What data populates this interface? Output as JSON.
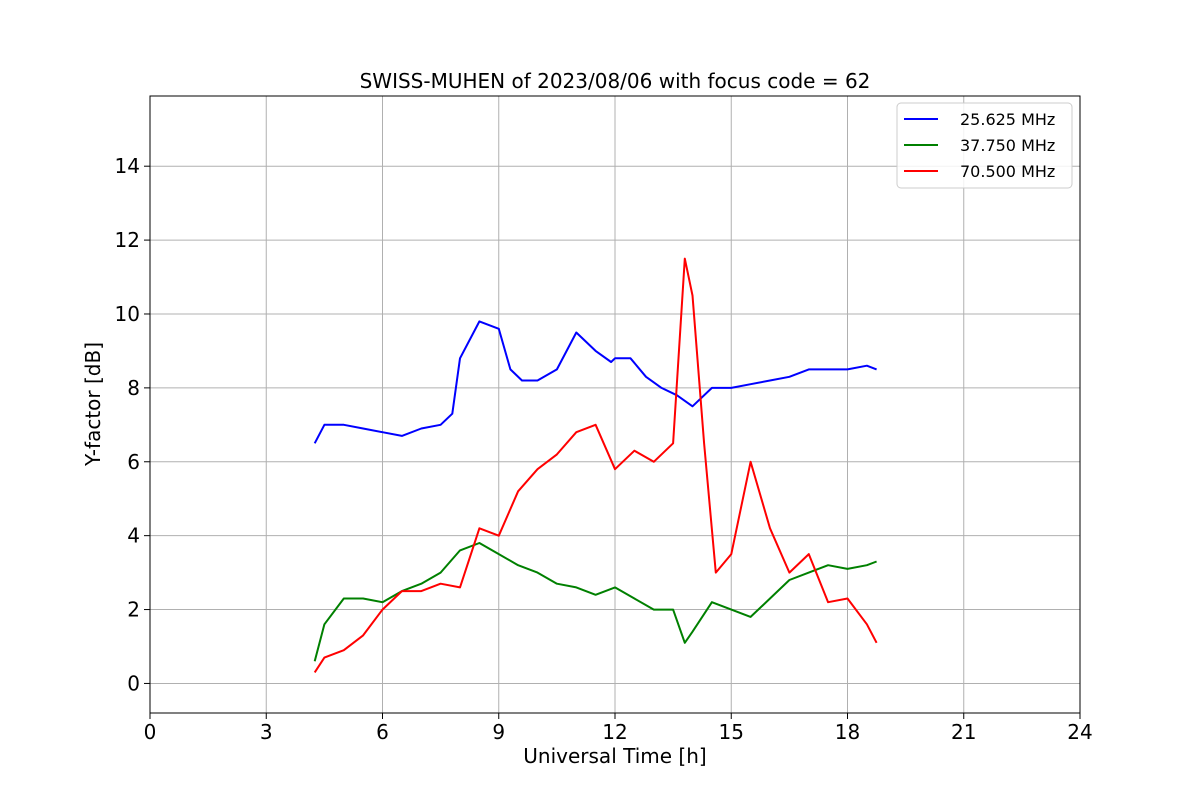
{
  "chart_data": {
    "type": "line",
    "title": "SWISS-MUHEN of 2023/08/06 with focus code = 62",
    "xlabel": "Universal Time [h]",
    "ylabel": "Y-factor [dB]",
    "xlim": [
      0,
      24
    ],
    "ylim": [
      -0.8,
      15.9
    ],
    "x_ticks": [
      0,
      3,
      6,
      9,
      12,
      15,
      18,
      21,
      24
    ],
    "y_ticks": [
      0,
      2,
      4,
      6,
      8,
      10,
      12,
      14
    ],
    "grid": true,
    "legend_position": "top-right",
    "series": [
      {
        "name": "25.625 MHz",
        "color": "#0000ff",
        "x": [
          4.25,
          4.5,
          5.0,
          5.5,
          6.0,
          6.5,
          7.0,
          7.5,
          7.8,
          8.0,
          8.5,
          9.0,
          9.3,
          9.6,
          10.0,
          10.5,
          11.0,
          11.5,
          11.9,
          12.0,
          12.4,
          12.8,
          13.2,
          13.6,
          14.0,
          14.5,
          15.0,
          15.5,
          16.0,
          16.5,
          17.0,
          17.5,
          18.0,
          18.5,
          18.75
        ],
        "y": [
          6.5,
          7.0,
          7.0,
          6.9,
          6.8,
          6.7,
          6.9,
          7.0,
          7.3,
          8.8,
          9.8,
          9.6,
          8.5,
          8.2,
          8.2,
          8.5,
          9.5,
          9.0,
          8.7,
          8.8,
          8.8,
          8.3,
          8.0,
          7.8,
          7.5,
          8.0,
          8.0,
          8.1,
          8.2,
          8.3,
          8.5,
          8.5,
          8.5,
          8.6,
          8.5
        ]
      },
      {
        "name": "37.750 MHz",
        "color": "#008000",
        "x": [
          4.25,
          4.5,
          5.0,
          5.5,
          6.0,
          6.5,
          7.0,
          7.5,
          8.0,
          8.5,
          9.0,
          9.5,
          10.0,
          10.5,
          11.0,
          11.5,
          12.0,
          12.5,
          13.0,
          13.5,
          13.8,
          14.0,
          14.5,
          15.0,
          15.5,
          16.0,
          16.5,
          17.0,
          17.5,
          18.0,
          18.5,
          18.75
        ],
        "y": [
          0.6,
          1.6,
          2.3,
          2.3,
          2.2,
          2.5,
          2.7,
          3.0,
          3.6,
          3.8,
          3.5,
          3.2,
          3.0,
          2.7,
          2.6,
          2.4,
          2.6,
          2.3,
          2.0,
          2.0,
          1.1,
          1.4,
          2.2,
          2.0,
          1.8,
          2.3,
          2.8,
          3.0,
          3.2,
          3.1,
          3.2,
          3.3
        ]
      },
      {
        "name": "70.500 MHz",
        "color": "#ff0000",
        "x": [
          4.25,
          4.5,
          5.0,
          5.5,
          6.0,
          6.5,
          7.0,
          7.5,
          8.0,
          8.5,
          9.0,
          9.5,
          10.0,
          10.5,
          11.0,
          11.5,
          12.0,
          12.5,
          13.0,
          13.5,
          13.8,
          14.0,
          14.3,
          14.6,
          15.0,
          15.5,
          16.0,
          16.5,
          17.0,
          17.5,
          18.0,
          18.5,
          18.75
        ],
        "y": [
          0.3,
          0.7,
          0.9,
          1.3,
          2.0,
          2.5,
          2.5,
          2.7,
          2.6,
          4.2,
          4.0,
          5.2,
          5.8,
          6.2,
          6.8,
          7.0,
          5.8,
          6.3,
          6.0,
          6.5,
          11.5,
          10.5,
          6.5,
          3.0,
          3.5,
          6.0,
          4.2,
          3.0,
          3.5,
          2.2,
          2.3,
          1.6,
          1.1
        ]
      }
    ]
  }
}
